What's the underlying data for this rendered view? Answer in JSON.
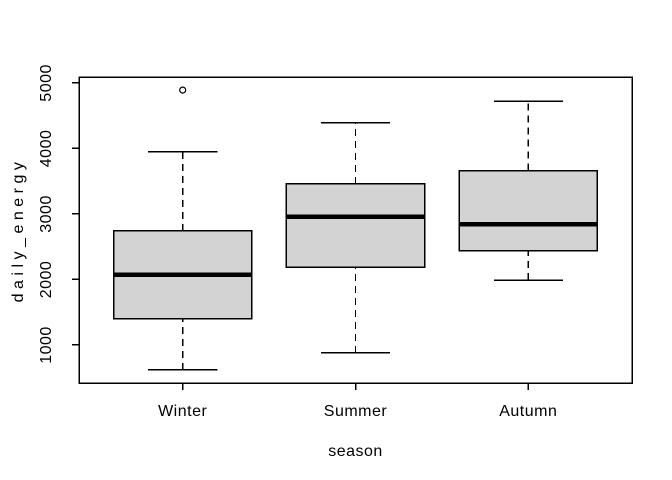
{
  "figure": {
    "background": "#ffffff"
  },
  "chart_data": {
    "type": "boxplot",
    "title": "",
    "xlabel": "season",
    "ylabel": "daily_energy",
    "categories": [
      "Winter",
      "Summer",
      "Autumn"
    ],
    "y_ticks": [
      1000,
      2000,
      3000,
      4000,
      5000
    ],
    "y_tick_labels": [
      "1000",
      "2000",
      "3000",
      "4000",
      "5000"
    ],
    "ylim": [
      420,
      5090
    ],
    "xlim": [
      0.4,
      3.6
    ],
    "grid": false,
    "legend": "none",
    "box_fill": "#d3d3d3",
    "line_color": "#000000",
    "background": "#ffffff",
    "series": [
      {
        "name": "Winter",
        "position": 1,
        "low": 620,
        "q1": 1400,
        "median": 2070,
        "q3": 2740,
        "high": 3950,
        "outliers": [
          4890
        ]
      },
      {
        "name": "Summer",
        "position": 2,
        "low": 880,
        "q1": 2190,
        "median": 2960,
        "q3": 3460,
        "high": 4390,
        "outliers": []
      },
      {
        "name": "Autumn",
        "position": 3,
        "low": 1990,
        "q1": 2440,
        "median": 2840,
        "q3": 3660,
        "high": 4720,
        "outliers": []
      }
    ]
  }
}
